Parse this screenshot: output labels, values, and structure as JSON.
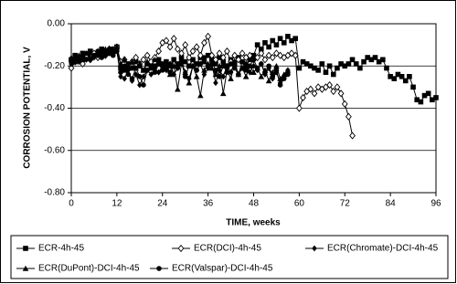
{
  "chart_data": {
    "type": "line",
    "xlabel": "TIME, weeks",
    "ylabel": "CORROSION POTENTIAL, V",
    "xlim": [
      0,
      96
    ],
    "xticks": [
      0,
      12,
      24,
      36,
      48,
      60,
      72,
      84,
      96
    ],
    "ylim": [
      -0.8,
      0
    ],
    "yticks": [
      {
        "value": 0,
        "label": "0.00"
      },
      {
        "value": -0.2,
        "label": "-0.20"
      },
      {
        "value": -0.4,
        "label": "-0.40"
      },
      {
        "value": -0.6,
        "label": "-0.60"
      },
      {
        "value": -0.8,
        "label": "-0.80"
      }
    ],
    "grid": true,
    "legend": "bottom",
    "series": [
      {
        "name": "ECR-4h-45",
        "color": "#000000",
        "marker": "square",
        "x": [
          0,
          1,
          2,
          3,
          4,
          5,
          6,
          7,
          8,
          9,
          10,
          11,
          12,
          13,
          14,
          15,
          16,
          17,
          18,
          19,
          20,
          21,
          22,
          23,
          24,
          25,
          26,
          27,
          28,
          29,
          30,
          31,
          32,
          33,
          34,
          35,
          36,
          37,
          38,
          39,
          40,
          41,
          42,
          43,
          44,
          45,
          46,
          47,
          48,
          49,
          50,
          51,
          52,
          53,
          54,
          55,
          56,
          57,
          58,
          59,
          60,
          61,
          62,
          63,
          64,
          65,
          66,
          67,
          68,
          69,
          70,
          71,
          72,
          73,
          74,
          75,
          76,
          77,
          78,
          79,
          80,
          81,
          82,
          83,
          84,
          85,
          86,
          87,
          88,
          89,
          90,
          91,
          92,
          93,
          94,
          95,
          96
        ],
        "values": [
          -0.17,
          -0.15,
          -0.16,
          -0.14,
          -0.15,
          -0.13,
          -0.15,
          -0.14,
          -0.12,
          -0.14,
          -0.13,
          -0.12,
          -0.11,
          -0.21,
          -0.22,
          -0.19,
          -0.21,
          -0.18,
          -0.2,
          -0.22,
          -0.19,
          -0.21,
          -0.2,
          -0.17,
          -0.19,
          -0.18,
          -0.2,
          -0.17,
          -0.19,
          -0.16,
          -0.18,
          -0.2,
          -0.17,
          -0.19,
          -0.16,
          -0.18,
          -0.15,
          -0.17,
          -0.19,
          -0.16,
          -0.18,
          -0.2,
          -0.17,
          -0.19,
          -0.16,
          -0.18,
          -0.2,
          -0.17,
          -0.15,
          -0.1,
          -0.12,
          -0.09,
          -0.11,
          -0.08,
          -0.1,
          -0.07,
          -0.09,
          -0.06,
          -0.08,
          -0.07,
          -0.21,
          -0.18,
          -0.19,
          -0.2,
          -0.21,
          -0.22,
          -0.19,
          -0.23,
          -0.2,
          -0.24,
          -0.21,
          -0.19,
          -0.2,
          -0.19,
          -0.17,
          -0.19,
          -0.21,
          -0.18,
          -0.16,
          -0.17,
          -0.16,
          -0.18,
          -0.17,
          -0.21,
          -0.25,
          -0.26,
          -0.24,
          -0.25,
          -0.27,
          -0.25,
          -0.3,
          -0.36,
          -0.37,
          -0.34,
          -0.33,
          -0.36,
          -0.35
        ]
      },
      {
        "name": "ECR(DCI)-4h-45",
        "color": "#000000",
        "marker": "diamond-open",
        "x": [
          0,
          1,
          2,
          3,
          4,
          5,
          6,
          7,
          8,
          9,
          10,
          11,
          12,
          13,
          14,
          15,
          16,
          17,
          18,
          19,
          20,
          21,
          22,
          23,
          24,
          25,
          26,
          27,
          28,
          29,
          30,
          31,
          32,
          33,
          34,
          35,
          36,
          37,
          38,
          39,
          40,
          41,
          42,
          43,
          44,
          45,
          46,
          47,
          48,
          49,
          50,
          51,
          52,
          53,
          54,
          55,
          56,
          57,
          58,
          59,
          60,
          61,
          62,
          63,
          64,
          65,
          66,
          67,
          68,
          69,
          70,
          71,
          72,
          73,
          74
        ],
        "values": [
          -0.21,
          -0.18,
          -0.16,
          -0.19,
          -0.15,
          -0.17,
          -0.14,
          -0.16,
          -0.13,
          -0.15,
          -0.12,
          -0.14,
          -0.11,
          -0.18,
          -0.17,
          -0.2,
          -0.18,
          -0.16,
          -0.19,
          -0.17,
          -0.15,
          -0.18,
          -0.16,
          -0.13,
          -0.09,
          -0.08,
          -0.11,
          -0.07,
          -0.12,
          -0.14,
          -0.1,
          -0.16,
          -0.13,
          -0.11,
          -0.15,
          -0.09,
          -0.06,
          -0.15,
          -0.17,
          -0.14,
          -0.16,
          -0.13,
          -0.18,
          -0.15,
          -0.17,
          -0.14,
          -0.16,
          -0.15,
          -0.17,
          -0.16,
          -0.14,
          -0.17,
          -0.15,
          -0.16,
          -0.14,
          -0.15,
          -0.16,
          -0.15,
          -0.14,
          -0.15,
          -0.4,
          -0.35,
          -0.32,
          -0.31,
          -0.33,
          -0.3,
          -0.31,
          -0.3,
          -0.29,
          -0.32,
          -0.3,
          -0.33,
          -0.38,
          -0.44,
          -0.53
        ]
      },
      {
        "name": "ECR(Chromate)-DCI-4h-45",
        "color": "#000000",
        "marker": "diamond",
        "x": [
          0,
          1,
          2,
          3,
          4,
          5,
          6,
          7,
          8,
          9,
          10,
          11,
          12,
          13,
          14,
          15,
          16,
          17,
          18,
          19,
          20,
          21,
          22,
          23,
          24,
          25,
          26,
          27,
          28,
          29,
          30,
          31,
          32,
          33,
          34,
          35,
          36,
          37,
          38,
          39,
          40,
          41,
          42,
          43,
          44,
          45,
          46,
          47,
          48,
          49,
          50,
          51,
          52,
          53,
          54,
          55,
          56,
          57
        ],
        "values": [
          -0.19,
          -0.17,
          -0.18,
          -0.15,
          -0.17,
          -0.14,
          -0.16,
          -0.15,
          -0.13,
          -0.15,
          -0.14,
          -0.12,
          -0.13,
          -0.25,
          -0.26,
          -0.22,
          -0.27,
          -0.24,
          -0.29,
          -0.25,
          -0.22,
          -0.24,
          -0.21,
          -0.23,
          -0.2,
          -0.22,
          -0.19,
          -0.24,
          -0.21,
          -0.18,
          -0.23,
          -0.26,
          -0.2,
          -0.22,
          -0.19,
          -0.24,
          -0.21,
          -0.19,
          -0.28,
          -0.22,
          -0.25,
          -0.2,
          -0.23,
          -0.18,
          -0.24,
          -0.21,
          -0.19,
          -0.23,
          -0.2,
          -0.22,
          -0.19,
          -0.24,
          -0.21,
          -0.26,
          -0.23,
          -0.28,
          -0.25,
          -0.22
        ]
      },
      {
        "name": "ECR(DuPont)-DCI-4h-45",
        "color": "#000000",
        "marker": "triangle",
        "x": [
          0,
          1,
          2,
          3,
          4,
          5,
          6,
          7,
          8,
          9,
          10,
          11,
          12,
          13,
          14,
          15,
          16,
          17,
          18,
          19,
          20,
          21,
          22,
          23,
          24,
          25,
          26,
          27,
          28,
          29,
          30,
          31,
          32,
          33,
          34,
          35,
          36,
          37,
          38,
          39,
          40,
          41,
          42,
          43,
          44,
          45,
          46,
          47,
          48,
          49,
          50,
          51,
          52,
          53,
          54,
          55,
          56,
          57
        ],
        "values": [
          -0.16,
          -0.18,
          -0.15,
          -0.17,
          -0.14,
          -0.16,
          -0.15,
          -0.13,
          -0.15,
          -0.12,
          -0.14,
          -0.13,
          -0.11,
          -0.19,
          -0.17,
          -0.2,
          -0.18,
          -0.21,
          -0.19,
          -0.22,
          -0.18,
          -0.2,
          -0.17,
          -0.19,
          -0.21,
          -0.18,
          -0.24,
          -0.2,
          -0.31,
          -0.19,
          -0.23,
          -0.28,
          -0.2,
          -0.25,
          -0.34,
          -0.22,
          -0.19,
          -0.21,
          -0.24,
          -0.2,
          -0.33,
          -0.22,
          -0.26,
          -0.19,
          -0.24,
          -0.21,
          -0.25,
          -0.2,
          -0.23,
          -0.21,
          -0.25,
          -0.22,
          -0.27,
          -0.23,
          -0.2,
          -0.26,
          -0.24,
          -0.22
        ]
      },
      {
        "name": "ECR(Valspar)-DCI-4h-45",
        "color": "#000000",
        "marker": "circle",
        "x": [
          0,
          1,
          2,
          3,
          4,
          5,
          6,
          7,
          8,
          9,
          10,
          11,
          12,
          13,
          14,
          15,
          16,
          17,
          18,
          19,
          20,
          21,
          22,
          23,
          24,
          25,
          26,
          27,
          28,
          29,
          30,
          31,
          32,
          33,
          34,
          35,
          36,
          37,
          38,
          39,
          40,
          41,
          42,
          43,
          44,
          45,
          46,
          47,
          48,
          49,
          50,
          51,
          52,
          53,
          54,
          55,
          56,
          57
        ],
        "values": [
          -0.18,
          -0.15,
          -0.17,
          -0.16,
          -0.14,
          -0.17,
          -0.15,
          -0.13,
          -0.16,
          -0.14,
          -0.12,
          -0.15,
          -0.13,
          -0.23,
          -0.2,
          -0.24,
          -0.26,
          -0.21,
          -0.25,
          -0.29,
          -0.22,
          -0.2,
          -0.23,
          -0.19,
          -0.22,
          -0.2,
          -0.23,
          -0.17,
          -0.21,
          -0.18,
          -0.25,
          -0.2,
          -0.17,
          -0.22,
          -0.19,
          -0.16,
          -0.2,
          -0.18,
          -0.22,
          -0.25,
          -0.2,
          -0.23,
          -0.19,
          -0.21,
          -0.24,
          -0.18,
          -0.22,
          -0.2,
          -0.17,
          -0.21,
          -0.19,
          -0.23,
          -0.2,
          -0.25,
          -0.22,
          -0.29,
          -0.26,
          -0.24
        ]
      }
    ]
  }
}
